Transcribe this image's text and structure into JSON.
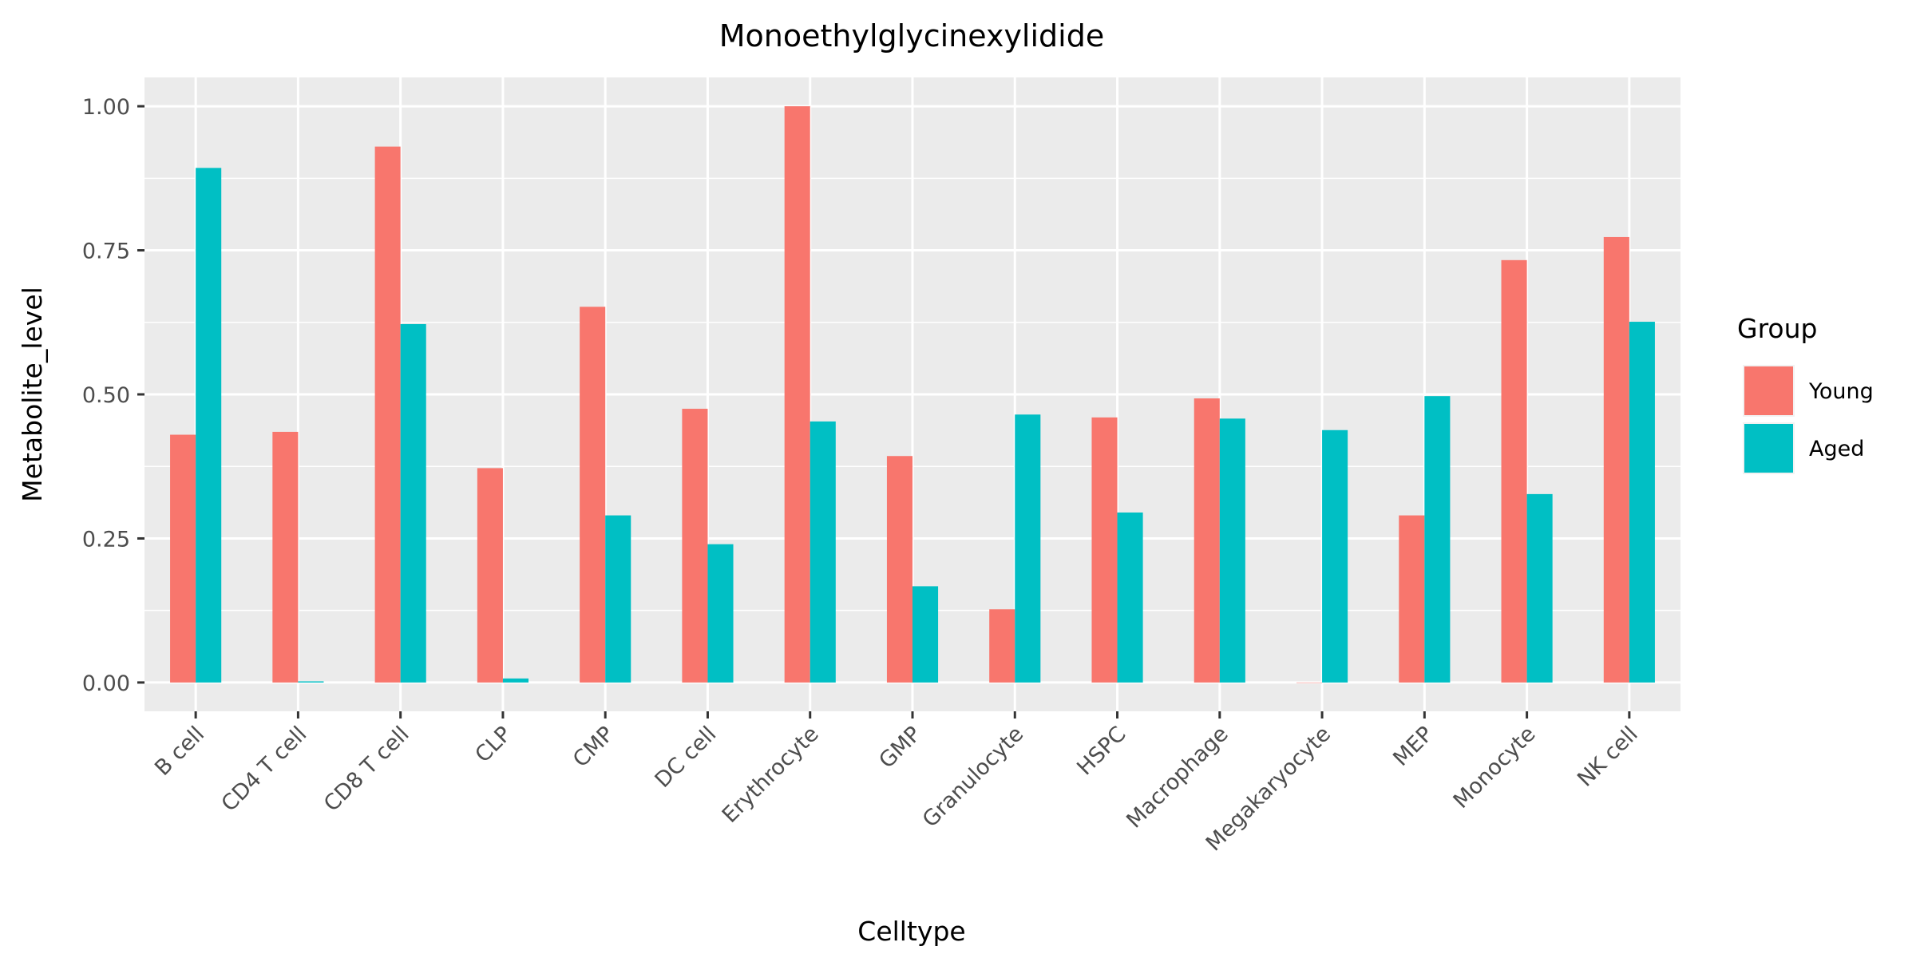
{
  "chart_data": {
    "type": "bar",
    "title": "Monoethylglycinexylidide",
    "xlabel": "Celltype",
    "ylabel": "Metabolite_level",
    "ylim": [
      -0.05,
      1.05
    ],
    "yticks": [
      0.0,
      0.25,
      0.5,
      0.75,
      1.0
    ],
    "ytick_labels": [
      "0.00",
      "0.25",
      "0.50",
      "0.75",
      "1.00"
    ],
    "grid": true,
    "legend": {
      "title": "Group",
      "position": "right"
    },
    "categories": [
      "B cell",
      "CD4 T cell",
      "CD8 T cell",
      "CLP",
      "CMP",
      "DC cell",
      "Erythrocyte",
      "GMP",
      "Granulocyte",
      "HSPC",
      "Macrophage",
      "Megakaryocyte",
      "MEP",
      "Monocyte",
      "NK cell"
    ],
    "series": [
      {
        "name": "Young",
        "color": "#f8766d",
        "values": [
          0.43,
          0.435,
          0.93,
          0.372,
          0.652,
          0.475,
          1.0,
          0.393,
          0.127,
          0.46,
          0.493,
          0.0,
          0.29,
          0.733,
          0.773
        ]
      },
      {
        "name": "Aged",
        "color": "#00bfc4",
        "values": [
          0.893,
          0.002,
          0.622,
          0.007,
          0.29,
          0.24,
          0.453,
          0.167,
          0.465,
          0.295,
          0.458,
          0.438,
          0.497,
          0.327,
          0.626
        ]
      }
    ]
  }
}
